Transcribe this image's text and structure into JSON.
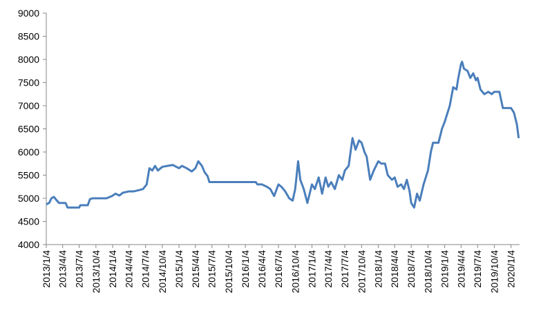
{
  "chart_data": {
    "type": "line",
    "x": [
      "2013/1/4",
      "2013/1/20",
      "2013/2/1",
      "2013/2/15",
      "2013/3/1",
      "2013/3/15",
      "2013/4/4",
      "2013/4/20",
      "2013/5/1",
      "2013/6/1",
      "2013/7/4",
      "2013/7/10",
      "2013/8/20",
      "2013/9/1",
      "2013/9/15",
      "2013/10/4",
      "2013/11/1",
      "2013/12/1",
      "2014/1/1",
      "2014/1/20",
      "2014/2/10",
      "2014/3/1",
      "2014/4/4",
      "2014/5/1",
      "2014/6/1",
      "2014/6/20",
      "2014/7/10",
      "2014/7/25",
      "2014/8/10",
      "2014/8/25",
      "2014/9/10",
      "2014/10/4",
      "2014/11/1",
      "2014/12/1",
      "2015/1/4",
      "2015/1/20",
      "2015/2/15",
      "2015/3/15",
      "2015/4/4",
      "2015/4/20",
      "2015/5/10",
      "2015/5/25",
      "2015/6/10",
      "2015/6/20",
      "2015/7/4",
      "2015/10/4",
      "2016/1/4",
      "2016/3/1",
      "2016/3/10",
      "2016/4/4",
      "2016/5/1",
      "2016/5/20",
      "2016/6/10",
      "2016/7/4",
      "2016/7/20",
      "2016/8/10",
      "2016/9/1",
      "2016/9/20",
      "2016/10/4",
      "2016/10/20",
      "2016/11/1",
      "2016/11/20",
      "2016/12/10",
      "2017/1/4",
      "2017/1/20",
      "2017/2/10",
      "2017/3/1",
      "2017/3/20",
      "2017/4/4",
      "2017/4/20",
      "2017/5/10",
      "2017/6/1",
      "2017/6/20",
      "2017/7/4",
      "2017/7/25",
      "2017/8/15",
      "2017/9/1",
      "2017/9/20",
      "2017/10/4",
      "2017/10/20",
      "2017/11/1",
      "2017/11/20",
      "2017/12/10",
      "2018/1/4",
      "2018/1/20",
      "2018/2/10",
      "2018/2/25",
      "2018/3/20",
      "2018/4/4",
      "2018/4/20",
      "2018/5/10",
      "2018/5/25",
      "2018/6/10",
      "2018/6/25",
      "2018/7/4",
      "2018/7/20",
      "2018/8/5",
      "2018/8/20",
      "2018/9/10",
      "2018/10/4",
      "2018/10/20",
      "2018/11/1",
      "2018/12/1",
      "2018/12/20",
      "2019/1/4",
      "2019/2/1",
      "2019/2/20",
      "2019/3/10",
      "2019/3/20",
      "2019/4/4",
      "2019/4/10",
      "2019/4/20",
      "2019/5/10",
      "2019/5/25",
      "2019/6/10",
      "2019/6/25",
      "2019/7/4",
      "2019/7/20",
      "2019/8/10",
      "2019/9/1",
      "2019/9/20",
      "2019/10/4",
      "2019/11/1",
      "2019/11/20",
      "2019/12/10",
      "2020/1/4",
      "2020/1/20",
      "2020/2/5",
      "2020/2/15"
    ],
    "series": [
      {
        "color": "#4a7ebb",
        "values": [
          4870,
          4900,
          5000,
          5030,
          4960,
          4900,
          4900,
          4900,
          4800,
          4800,
          4800,
          4850,
          4850,
          4980,
          5000,
          5000,
          5000,
          5000,
          5050,
          5100,
          5060,
          5120,
          5150,
          5150,
          5180,
          5200,
          5300,
          5650,
          5600,
          5700,
          5600,
          5680,
          5700,
          5720,
          5650,
          5700,
          5650,
          5580,
          5650,
          5800,
          5700,
          5560,
          5480,
          5350,
          5350,
          5350,
          5350,
          5350,
          5300,
          5300,
          5250,
          5200,
          5050,
          5300,
          5250,
          5150,
          5000,
          4950,
          5200,
          5800,
          5400,
          5200,
          4900,
          5300,
          5200,
          5450,
          5100,
          5450,
          5250,
          5350,
          5200,
          5500,
          5400,
          5600,
          5700,
          6300,
          6050,
          6250,
          6200,
          6000,
          5900,
          5400,
          5600,
          5800,
          5750,
          5750,
          5500,
          5400,
          5450,
          5250,
          5300,
          5200,
          5400,
          5150,
          4900,
          4800,
          5100,
          4950,
          5300,
          5600,
          6000,
          6200,
          6200,
          6500,
          6650,
          7000,
          7400,
          7350,
          7600,
          7900,
          7950,
          7800,
          7750,
          7600,
          7700,
          7550,
          7600,
          7350,
          7250,
          7300,
          7250,
          7300,
          7300,
          6950,
          6950,
          6950,
          6850,
          6600,
          6300
        ]
      }
    ],
    "xlim": [
      "2013/1/4",
      "2020/2/20"
    ],
    "xticks": [
      "2013/1/4",
      "2013/4/4",
      "2013/7/4",
      "2013/10/4",
      "2014/1/4",
      "2014/4/4",
      "2014/7/4",
      "2014/10/4",
      "2015/1/4",
      "2015/4/4",
      "2015/7/4",
      "2015/10/4",
      "2016/1/4",
      "2016/4/4",
      "2016/7/4",
      "2016/10/4",
      "2017/1/4",
      "2017/4/4",
      "2017/7/4",
      "2017/10/4",
      "2018/1/4",
      "2018/4/4",
      "2018/7/4",
      "2018/10/4",
      "2019/1/4",
      "2019/4/4",
      "2019/7/4",
      "2019/10/4",
      "2020/1/4"
    ],
    "ylim": [
      4000,
      9000
    ],
    "yticks": [
      4000,
      4500,
      5000,
      5500,
      6000,
      6500,
      7000,
      7500,
      8000,
      8500,
      9000
    ],
    "grid": false
  }
}
